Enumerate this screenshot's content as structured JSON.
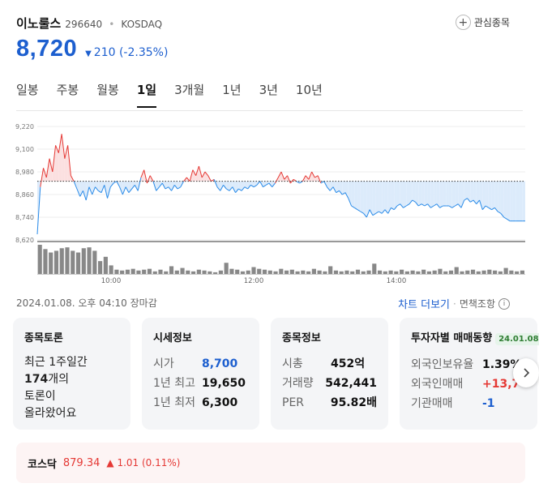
{
  "stock": {
    "name": "이노룰스",
    "code": "296640",
    "market": "KOSDAQ",
    "price": "8,720",
    "change": "210 (-2.35%)",
    "watch_label": "관심종목"
  },
  "tabs": [
    {
      "label": "일봉"
    },
    {
      "label": "주봉"
    },
    {
      "label": "월봉"
    },
    {
      "label": "1일"
    },
    {
      "label": "3개월"
    },
    {
      "label": "1년"
    },
    {
      "label": "3년"
    },
    {
      "label": "10년"
    }
  ],
  "active_tab": "1일",
  "chart_data": {
    "type": "line",
    "y_ticks": [
      "9,220",
      "9,100",
      "8,980",
      "8,860",
      "8,740",
      "8,620"
    ],
    "ylim": [
      8620,
      9220
    ],
    "x_ticks": [
      "10:00",
      "12:00",
      "14:00"
    ],
    "reference_price": 8930,
    "colors": {
      "above": "#e53935",
      "below": "#2a8be8",
      "above_fill": "#fbe0e0",
      "below_fill": "#dcebfb",
      "volume": "#888888"
    },
    "series": [
      {
        "values": [
          8650,
          8900,
          9000,
          8950,
          9050,
          8980,
          9120,
          9080,
          9180,
          9050,
          9120,
          8960,
          8930,
          8890,
          8850,
          8880,
          8830,
          8900,
          8860,
          8900,
          8880,
          8870,
          8910,
          8840,
          8900,
          8920,
          8930,
          8900,
          8860,
          8900,
          8870,
          8890,
          8910,
          8880,
          8950,
          8990,
          8920,
          8960,
          8930,
          8880,
          8900,
          8920,
          8890,
          8900,
          8880,
          8910,
          8890,
          8900,
          8930,
          8950,
          8930,
          8990,
          8960,
          9010,
          8950,
          8980,
          8960,
          8930,
          8940,
          8900,
          8880,
          8910,
          8890,
          8880,
          8900,
          8870,
          8890,
          8880,
          8900,
          8890,
          8910,
          8900,
          8910,
          8930,
          8900,
          8910,
          8920,
          8900,
          8920,
          8950,
          8980,
          8940,
          8960,
          8920,
          8940,
          8930,
          8920,
          8930,
          8960,
          8940,
          8980,
          8950,
          8960,
          8920,
          8930,
          8900,
          8880,
          8900,
          8870,
          8880,
          8860,
          8870,
          8840,
          8800,
          8790,
          8780,
          8770,
          8760,
          8740,
          8780,
          8750,
          8760,
          8770,
          8760,
          8780,
          8760,
          8790,
          8780,
          8800,
          8810,
          8790,
          8800,
          8810,
          8830,
          8820,
          8800,
          8810,
          8800,
          8810,
          8790,
          8800,
          8810,
          8790,
          8800,
          8800,
          8800,
          8790,
          8800,
          8810,
          8790,
          8830,
          8840,
          8820,
          8830,
          8810,
          8830,
          8780,
          8800,
          8790,
          8780,
          8790,
          8770,
          8760,
          8740,
          8730,
          8720,
          8720,
          8720,
          8720,
          8720,
          8720
        ]
      }
    ],
    "volume": [
      34,
      29,
      25,
      27,
      30,
      31,
      27,
      25,
      30,
      31,
      27,
      15,
      20,
      10,
      5,
      4,
      5,
      6,
      4,
      5,
      6,
      3,
      5,
      3,
      9,
      4,
      7,
      4,
      3,
      5,
      4,
      3,
      2,
      4,
      13,
      6,
      5,
      3,
      4,
      8,
      6,
      5,
      4,
      3,
      6,
      4,
      5,
      3,
      4,
      3,
      6,
      4,
      3,
      9,
      4,
      3,
      4,
      3,
      5,
      3,
      4,
      12,
      4,
      3,
      4,
      3,
      5,
      3,
      4,
      3,
      5,
      3,
      4,
      6,
      3,
      4,
      8,
      3,
      4,
      5,
      3,
      4,
      5,
      4,
      3,
      7,
      4,
      3,
      4
    ]
  },
  "footer": {
    "timestamp": "2024.01.08. 오후 04:10 장마감",
    "more_chart": "차트 더보기",
    "separator": "·",
    "disclaimer": "면책조항",
    "info_glyph": "i"
  },
  "cards": {
    "forum": {
      "title": "종목토론",
      "line1": "최근 1주일간",
      "count": "174",
      "line2_suffix": "개의",
      "line3": "토론이",
      "line4": "올라왔어요"
    },
    "quote": {
      "title": "시세정보",
      "rows": [
        {
          "k": "시가",
          "v": "8,700"
        },
        {
          "k": "1년 최고",
          "v": "19,650"
        },
        {
          "k": "1년 최저",
          "v": "6,300"
        }
      ]
    },
    "info": {
      "title": "종목정보",
      "rows": [
        {
          "k": "시총",
          "v": "452억"
        },
        {
          "k": "거래량",
          "v": "542,441"
        },
        {
          "k": "PER",
          "v": "95.82배"
        }
      ]
    },
    "investor": {
      "title": "투자자별 매매동향",
      "badge": "24.01.08",
      "rows": [
        {
          "k": "외국인보유율",
          "v": "1.39%"
        },
        {
          "k": "외국인매매",
          "v": "+13,7"
        },
        {
          "k": "기관매매",
          "v": "-1"
        }
      ]
    }
  },
  "index": {
    "name": "코스닥",
    "value": "879.34",
    "change": "1.01 (0.11%)"
  }
}
